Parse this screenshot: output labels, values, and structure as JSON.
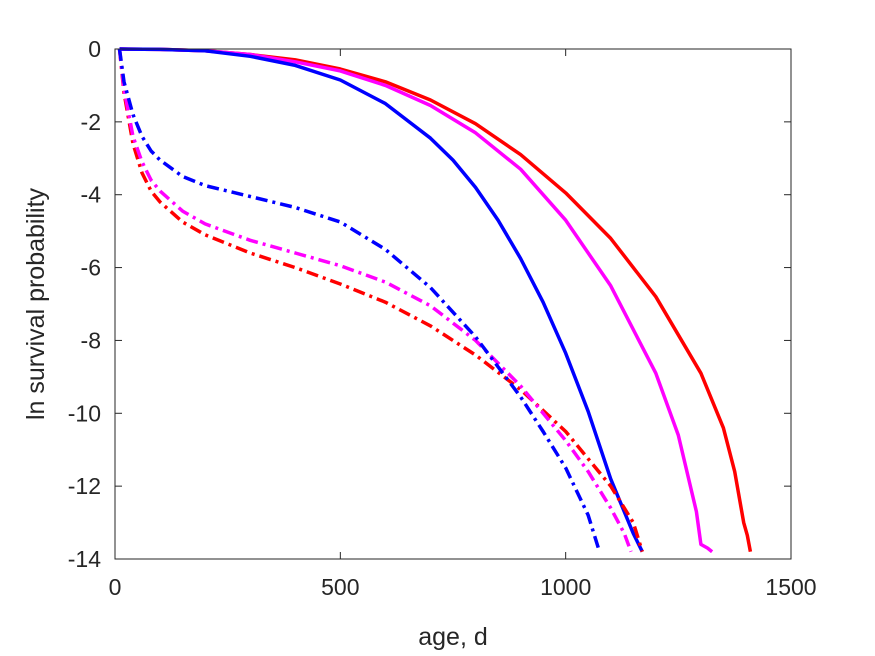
{
  "chart_data": {
    "type": "line",
    "title": "",
    "xlabel": "age, d",
    "ylabel": "ln survival probability",
    "xlim": [
      0,
      1500
    ],
    "ylim": [
      -14,
      0
    ],
    "x_ticks": [
      0,
      500,
      1000,
      1500
    ],
    "y_ticks": [
      0,
      -2,
      -4,
      -6,
      -8,
      -10,
      -12,
      -14
    ],
    "x_tick_labels": [
      "0",
      "500",
      "1000",
      "1500"
    ],
    "y_tick_labels": [
      "0",
      "-2",
      "-4",
      "-6",
      "-8",
      "-10",
      "-12",
      "-14"
    ],
    "grid": false,
    "legend": "none",
    "series": [
      {
        "color": "#ff0000",
        "style": "solid",
        "x": [
          10,
          100,
          200,
          300,
          400,
          500,
          600,
          700,
          800,
          900,
          1000,
          1100,
          1200,
          1300,
          1350,
          1375,
          1395,
          1403,
          1410
        ],
        "y": [
          0,
          -0.01,
          -0.05,
          -0.15,
          -0.3,
          -0.55,
          -0.9,
          -1.4,
          -2.05,
          -2.9,
          -3.95,
          -5.2,
          -6.8,
          -8.9,
          -10.4,
          -11.6,
          -13.0,
          -13.35,
          -13.8
        ]
      },
      {
        "color": "#ff00ff",
        "style": "solid",
        "x": [
          10,
          100,
          200,
          300,
          400,
          500,
          600,
          700,
          800,
          900,
          1000,
          1100,
          1200,
          1250,
          1290,
          1300,
          1315,
          1325
        ],
        "y": [
          0,
          -0.01,
          -0.05,
          -0.15,
          -0.35,
          -0.6,
          -1.0,
          -1.55,
          -2.3,
          -3.3,
          -4.7,
          -6.5,
          -8.9,
          -10.6,
          -12.7,
          -13.6,
          -13.7,
          -13.8
        ]
      },
      {
        "color": "#0000ff",
        "style": "solid",
        "x": [
          10,
          100,
          200,
          300,
          400,
          500,
          600,
          700,
          750,
          800,
          850,
          900,
          950,
          1000,
          1050,
          1100,
          1150,
          1170
        ],
        "y": [
          0,
          -0.01,
          -0.05,
          -0.2,
          -0.45,
          -0.85,
          -1.5,
          -2.45,
          -3.05,
          -3.8,
          -4.7,
          -5.75,
          -6.95,
          -8.35,
          -9.95,
          -11.8,
          -13.3,
          -13.8
        ]
      },
      {
        "color": "#ff0000",
        "style": "dashdot",
        "x": [
          10,
          20,
          40,
          60,
          80,
          100,
          150,
          200,
          300,
          400,
          500,
          600,
          700,
          800,
          900,
          1000,
          1100,
          1150,
          1170
        ],
        "y": [
          0,
          -1.2,
          -2.6,
          -3.4,
          -3.9,
          -4.2,
          -4.75,
          -5.1,
          -5.6,
          -6.0,
          -6.45,
          -6.95,
          -7.6,
          -8.4,
          -9.35,
          -10.5,
          -12.0,
          -13.0,
          -13.8
        ]
      },
      {
        "color": "#ff00ff",
        "style": "dashdot",
        "x": [
          10,
          20,
          40,
          60,
          80,
          100,
          150,
          200,
          300,
          400,
          500,
          600,
          700,
          800,
          900,
          1000,
          1050,
          1100,
          1130,
          1145
        ],
        "y": [
          0,
          -1.1,
          -2.4,
          -3.1,
          -3.6,
          -3.9,
          -4.45,
          -4.8,
          -5.25,
          -5.6,
          -5.95,
          -6.4,
          -7.05,
          -8.0,
          -9.25,
          -10.75,
          -11.6,
          -12.6,
          -13.3,
          -13.8
        ]
      },
      {
        "color": "#0000ff",
        "style": "dashdot",
        "x": [
          10,
          20,
          40,
          60,
          80,
          100,
          150,
          200,
          300,
          400,
          500,
          600,
          700,
          800,
          900,
          950,
          1000,
          1050,
          1075
        ],
        "y": [
          0,
          -0.9,
          -1.8,
          -2.4,
          -2.8,
          -3.05,
          -3.5,
          -3.75,
          -4.05,
          -4.35,
          -4.75,
          -5.5,
          -6.55,
          -7.9,
          -9.55,
          -10.5,
          -11.5,
          -12.8,
          -13.8
        ]
      }
    ]
  }
}
